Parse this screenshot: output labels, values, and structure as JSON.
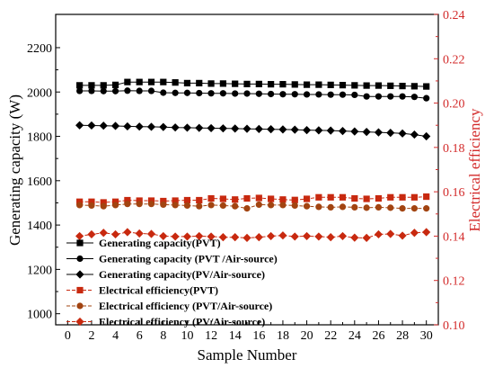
{
  "chart_data": {
    "type": "line",
    "x": [
      1,
      2,
      3,
      4,
      5,
      6,
      7,
      8,
      9,
      10,
      11,
      12,
      13,
      14,
      15,
      16,
      17,
      18,
      19,
      20,
      21,
      22,
      23,
      24,
      25,
      26,
      27,
      28,
      29,
      30
    ],
    "xlabel": "Sample Number",
    "ylabel": "Generating capacity (W)",
    "y2label": "Electrical efficiency",
    "xlim": [
      -1,
      31
    ],
    "ylim": [
      950,
      2350
    ],
    "y2lim": [
      0.1,
      0.24
    ],
    "xticks": [
      0,
      2,
      4,
      6,
      8,
      10,
      12,
      14,
      16,
      18,
      20,
      22,
      24,
      26,
      28,
      30
    ],
    "yticks": [
      1000,
      1200,
      1400,
      1600,
      1800,
      2000,
      2200
    ],
    "y2ticks": [
      0.1,
      0.12,
      0.14,
      0.16,
      0.18,
      0.2,
      0.22,
      0.24
    ],
    "legend_position": "bottom-left",
    "grid": false,
    "series": [
      {
        "name": "Generating capacity(PVT)",
        "axis": "left",
        "marker": "square",
        "color": "#000000",
        "values": [
          2030,
          2030,
          2030,
          2032,
          2045,
          2045,
          2045,
          2045,
          2043,
          2040,
          2040,
          2038,
          2038,
          2037,
          2036,
          2036,
          2035,
          2035,
          2034,
          2033,
          2033,
          2032,
          2031,
          2030,
          2029,
          2029,
          2028,
          2027,
          2026,
          2025
        ]
      },
      {
        "name": "Generating capacity (PVT /Air-source)",
        "axis": "left",
        "marker": "circle",
        "color": "#000000",
        "values": [
          2005,
          2005,
          2004,
          2004,
          2006,
          2005,
          2005,
          1997,
          1996,
          1996,
          1995,
          1994,
          1994,
          1993,
          1993,
          1992,
          1991,
          1990,
          1990,
          1989,
          1989,
          1988,
          1988,
          1987,
          1980,
          1980,
          1980,
          1980,
          1978,
          1972
        ]
      },
      {
        "name": "Generating capacity(PV/Air-source)",
        "axis": "left",
        "marker": "diamond",
        "color": "#000000",
        "values": [
          1850,
          1849,
          1848,
          1847,
          1845,
          1844,
          1843,
          1842,
          1840,
          1839,
          1838,
          1837,
          1836,
          1835,
          1834,
          1833,
          1832,
          1831,
          1830,
          1828,
          1827,
          1826,
          1824,
          1822,
          1820,
          1818,
          1816,
          1813,
          1808,
          1800
        ]
      },
      {
        "name": "Electrical efficiency(PVT)",
        "axis": "right",
        "marker": "square",
        "color": "#c8290f",
        "values": [
          0.1555,
          0.1555,
          0.1552,
          0.1555,
          0.1562,
          0.156,
          0.156,
          0.1558,
          0.156,
          0.1562,
          0.1562,
          0.157,
          0.1568,
          0.1565,
          0.157,
          0.1572,
          0.1568,
          0.1565,
          0.1563,
          0.1568,
          0.1575,
          0.1575,
          0.1575,
          0.157,
          0.1568,
          0.157,
          0.1575,
          0.1575,
          0.1575,
          0.1578
        ]
      },
      {
        "name": "Electrical efficiency (PVT/Air-source)",
        "axis": "right",
        "marker": "circle",
        "color": "#a24411",
        "values": [
          0.154,
          0.1538,
          0.1535,
          0.154,
          0.1545,
          0.1545,
          0.1545,
          0.1542,
          0.154,
          0.1538,
          0.1535,
          0.154,
          0.1538,
          0.1535,
          0.1525,
          0.1542,
          0.154,
          0.154,
          0.1538,
          0.1535,
          0.1532,
          0.153,
          0.1532,
          0.153,
          0.1528,
          0.153,
          0.1528,
          0.1525,
          0.1525,
          0.1525
        ]
      },
      {
        "name": "Electrical efficiency (PV/Air-source)",
        "axis": "right",
        "marker": "diamond",
        "color": "#c8290f",
        "values": [
          0.14,
          0.1408,
          0.1415,
          0.1408,
          0.1418,
          0.1412,
          0.141,
          0.14,
          0.1398,
          0.1398,
          0.14,
          0.1398,
          0.1395,
          0.1395,
          0.1392,
          0.1395,
          0.14,
          0.1403,
          0.1398,
          0.14,
          0.1398,
          0.1395,
          0.14,
          0.1393,
          0.1392,
          0.1408,
          0.141,
          0.1402,
          0.1415,
          0.1418
        ]
      }
    ]
  }
}
